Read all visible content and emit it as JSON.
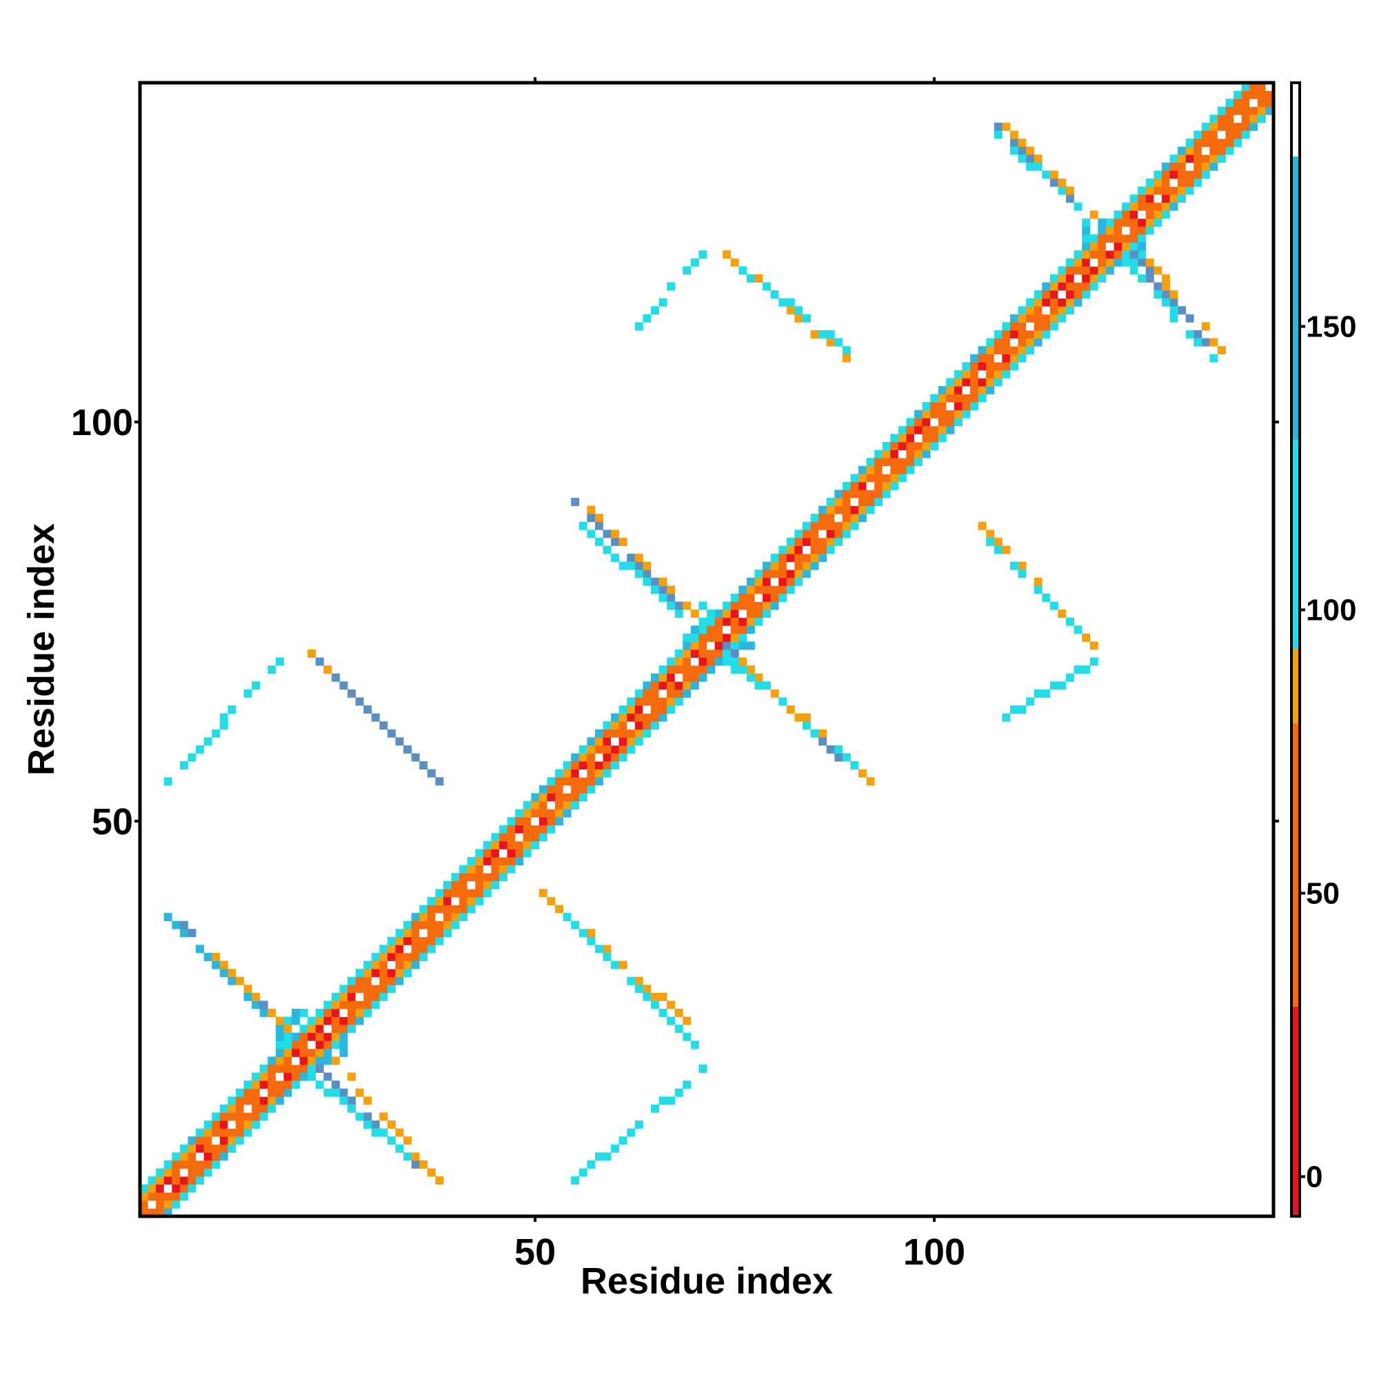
{
  "chart_data": {
    "type": "heatmap",
    "title": "",
    "xlabel": "Residue index",
    "ylabel": "Residue index",
    "n_residues": 142,
    "xlim": [
      0.5,
      142.5
    ],
    "ylim": [
      0.5,
      142.5
    ],
    "x_ticks": [
      50,
      100
    ],
    "y_ticks": [
      50,
      100
    ],
    "x_tick_labels": [
      "50",
      "100"
    ],
    "y_tick_labels": [
      "50",
      "100"
    ],
    "colorbar": {
      "ticks": [
        0,
        50,
        100,
        150
      ],
      "tick_labels": [
        "0",
        "50",
        "100",
        "150"
      ],
      "range": [
        -7,
        193
      ],
      "bands": [
        {
          "from": -7,
          "to": 30,
          "color": "#e8161a"
        },
        {
          "from": 30,
          "to": 80,
          "color": "#f56a0c"
        },
        {
          "from": 80,
          "to": 93,
          "color": "#f5a00c"
        },
        {
          "from": 93,
          "to": 95,
          "color": "#2ad7e6"
        },
        {
          "from": 95,
          "to": 130,
          "color": "#22dde8"
        },
        {
          "from": 130,
          "to": 180,
          "color": "#2ab6dd"
        },
        {
          "from": 180,
          "to": 193,
          "color": "#ffffff"
        }
      ]
    },
    "colors": {
      "red": "#e8161a",
      "orange_red": "#f56a0c",
      "orange": "#f5a00c",
      "cyan": "#22dde8",
      "sky_blue": "#2ab6dd",
      "steel_blue": "#5b8fc4"
    },
    "diagonal_band": {
      "half_width": 3
    },
    "helix_crossings": [
      22,
      73,
      123
    ],
    "contact_segments": [
      {
        "x1": 4,
        "y1": 38,
        "x2": 17,
        "y2": 25,
        "color": "sky_blue"
      },
      {
        "x1": 6,
        "y1": 37,
        "x2": 19,
        "y2": 24,
        "color": "steel_blue"
      },
      {
        "x1": 8,
        "y1": 35,
        "x2": 19,
        "y2": 24,
        "color": "orange"
      },
      {
        "x1": 23,
        "y1": 19,
        "x2": 36,
        "y2": 6,
        "color": "steel_blue"
      },
      {
        "x1": 25,
        "y1": 20,
        "x2": 38,
        "y2": 5,
        "color": "orange"
      },
      {
        "x1": 22,
        "y1": 18,
        "x2": 34,
        "y2": 8,
        "color": "cyan"
      },
      {
        "x1": 55,
        "y1": 90,
        "x2": 68,
        "y2": 77,
        "color": "steel_blue"
      },
      {
        "x1": 57,
        "y1": 89,
        "x2": 70,
        "y2": 76,
        "color": "orange"
      },
      {
        "x1": 56,
        "y1": 87,
        "x2": 68,
        "y2": 76,
        "color": "cyan"
      },
      {
        "x1": 74,
        "y1": 72,
        "x2": 88,
        "y2": 58,
        "color": "steel_blue"
      },
      {
        "x1": 76,
        "y1": 70,
        "x2": 92,
        "y2": 55,
        "color": "orange"
      },
      {
        "x1": 75,
        "y1": 70,
        "x2": 90,
        "y2": 57,
        "color": "cyan"
      },
      {
        "x1": 107,
        "y1": 138,
        "x2": 119,
        "y2": 126,
        "color": "steel_blue"
      },
      {
        "x1": 109,
        "y1": 137,
        "x2": 120,
        "y2": 126,
        "color": "orange"
      },
      {
        "x1": 108,
        "y1": 136,
        "x2": 118,
        "y2": 127,
        "color": "cyan"
      },
      {
        "x1": 125,
        "y1": 121,
        "x2": 134,
        "y2": 110,
        "color": "steel_blue"
      },
      {
        "x1": 126,
        "y1": 121,
        "x2": 136,
        "y2": 109,
        "color": "orange"
      },
      {
        "x1": 124,
        "y1": 120,
        "x2": 135,
        "y2": 108,
        "color": "cyan"
      },
      {
        "x1": 4,
        "y1": 55,
        "x2": 18,
        "y2": 70,
        "color": "cyan"
      },
      {
        "x1": 22,
        "y1": 71,
        "x2": 37,
        "y2": 56,
        "color": "orange"
      },
      {
        "x1": 23,
        "y1": 70,
        "x2": 38,
        "y2": 55,
        "color": "steel_blue"
      },
      {
        "x1": 51,
        "y1": 41,
        "x2": 71,
        "y2": 23,
        "color": "orange"
      },
      {
        "x1": 53,
        "y1": 39,
        "x2": 70,
        "y2": 22,
        "color": "cyan"
      },
      {
        "x1": 54,
        "y1": 4,
        "x2": 71,
        "y2": 19,
        "color": "cyan"
      },
      {
        "x1": 63,
        "y1": 112,
        "x2": 71,
        "y2": 121,
        "color": "cyan"
      },
      {
        "x1": 74,
        "y1": 121,
        "x2": 90,
        "y2": 107,
        "color": "orange"
      },
      {
        "x1": 75,
        "y1": 120,
        "x2": 89,
        "y2": 109,
        "color": "cyan"
      },
      {
        "x1": 106,
        "y1": 87,
        "x2": 120,
        "y2": 72,
        "color": "orange"
      },
      {
        "x1": 107,
        "y1": 85,
        "x2": 119,
        "y2": 73,
        "color": "cyan"
      },
      {
        "x1": 109,
        "y1": 63,
        "x2": 120,
        "y2": 70,
        "color": "cyan"
      }
    ]
  }
}
